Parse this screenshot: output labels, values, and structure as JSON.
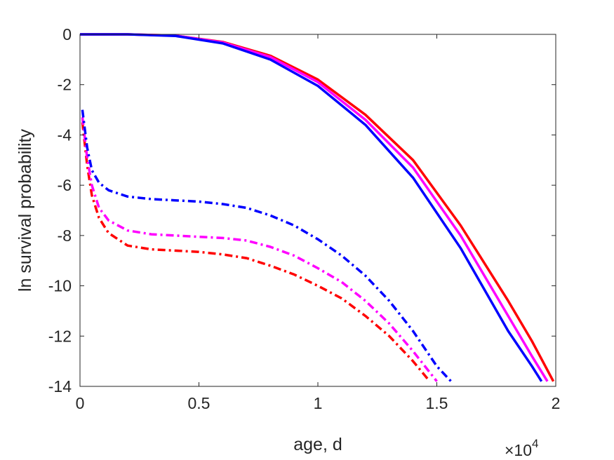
{
  "chart_data": {
    "type": "line",
    "xlabel": "age, d",
    "ylabel": "ln survival probability",
    "x_exponent_label": {
      "base": "×10",
      "power": "4"
    },
    "xlim": [
      0,
      20000
    ],
    "ylim": [
      -14,
      0
    ],
    "x_ticks": [
      0,
      5000,
      10000,
      15000,
      20000
    ],
    "x_tick_labels": [
      "0",
      "0.5",
      "1",
      "1.5",
      "2"
    ],
    "y_ticks": [
      0,
      -2,
      -4,
      -6,
      -8,
      -10,
      -12,
      -14
    ],
    "y_tick_labels": [
      "0",
      "-2",
      "-4",
      "-6",
      "-8",
      "-10",
      "-12",
      "-14"
    ],
    "grid": false,
    "series": [
      {
        "color": "#ff0000",
        "style": "solid",
        "x": [
          0,
          2000,
          4000,
          6000,
          8000,
          10000,
          12000,
          14000,
          16000,
          18000,
          19000,
          19900
        ],
        "y": [
          0,
          0,
          -0.05,
          -0.3,
          -0.85,
          -1.8,
          -3.2,
          -5.0,
          -7.6,
          -10.6,
          -12.2,
          -13.8
        ]
      },
      {
        "color": "#ff00ff",
        "style": "solid",
        "x": [
          0,
          2000,
          4000,
          6000,
          8000,
          10000,
          12000,
          14000,
          16000,
          18000,
          19000,
          19650
        ],
        "y": [
          0,
          0,
          -0.05,
          -0.32,
          -0.9,
          -1.9,
          -3.4,
          -5.3,
          -8.0,
          -11.2,
          -12.8,
          -13.8
        ]
      },
      {
        "color": "#0000ff",
        "style": "solid",
        "x": [
          0,
          2000,
          4000,
          6000,
          8000,
          10000,
          12000,
          14000,
          16000,
          18000,
          19000,
          19400
        ],
        "y": [
          0,
          0,
          -0.06,
          -0.36,
          -1.0,
          -2.05,
          -3.6,
          -5.7,
          -8.5,
          -11.8,
          -13.2,
          -13.8
        ]
      },
      {
        "color": "#ff0000",
        "style": "dashdot",
        "x": [
          100,
          300,
          500,
          800,
          1200,
          2000,
          3000,
          4000,
          5000,
          6000,
          7000,
          8000,
          9000,
          10000,
          11000,
          12000,
          13000,
          14000,
          14700
        ],
        "y": [
          -3.5,
          -5.2,
          -6.4,
          -7.3,
          -7.9,
          -8.4,
          -8.55,
          -8.6,
          -8.65,
          -8.75,
          -8.9,
          -9.2,
          -9.55,
          -10.0,
          -10.5,
          -11.2,
          -12.0,
          -13.0,
          -13.8
        ]
      },
      {
        "color": "#ff00ff",
        "style": "dashdot",
        "x": [
          100,
          300,
          500,
          800,
          1200,
          2000,
          3000,
          4000,
          5000,
          6000,
          7000,
          8000,
          9000,
          10000,
          11000,
          12000,
          13000,
          14000,
          15000
        ],
        "y": [
          -3.3,
          -4.9,
          -6.0,
          -6.9,
          -7.4,
          -7.8,
          -7.95,
          -8.0,
          -8.05,
          -8.1,
          -8.2,
          -8.45,
          -8.8,
          -9.3,
          -9.85,
          -10.6,
          -11.5,
          -12.6,
          -13.8
        ]
      },
      {
        "color": "#0000ff",
        "style": "dashdot",
        "x": [
          100,
          300,
          500,
          800,
          1200,
          2000,
          3000,
          4000,
          5000,
          6000,
          7000,
          8000,
          9000,
          10000,
          11000,
          12000,
          13000,
          14000,
          15000,
          15600
        ],
        "y": [
          -3.0,
          -4.5,
          -5.4,
          -5.9,
          -6.2,
          -6.45,
          -6.55,
          -6.6,
          -6.65,
          -6.75,
          -6.9,
          -7.2,
          -7.6,
          -8.15,
          -8.8,
          -9.6,
          -10.6,
          -11.8,
          -13.2,
          -13.8
        ]
      }
    ]
  }
}
